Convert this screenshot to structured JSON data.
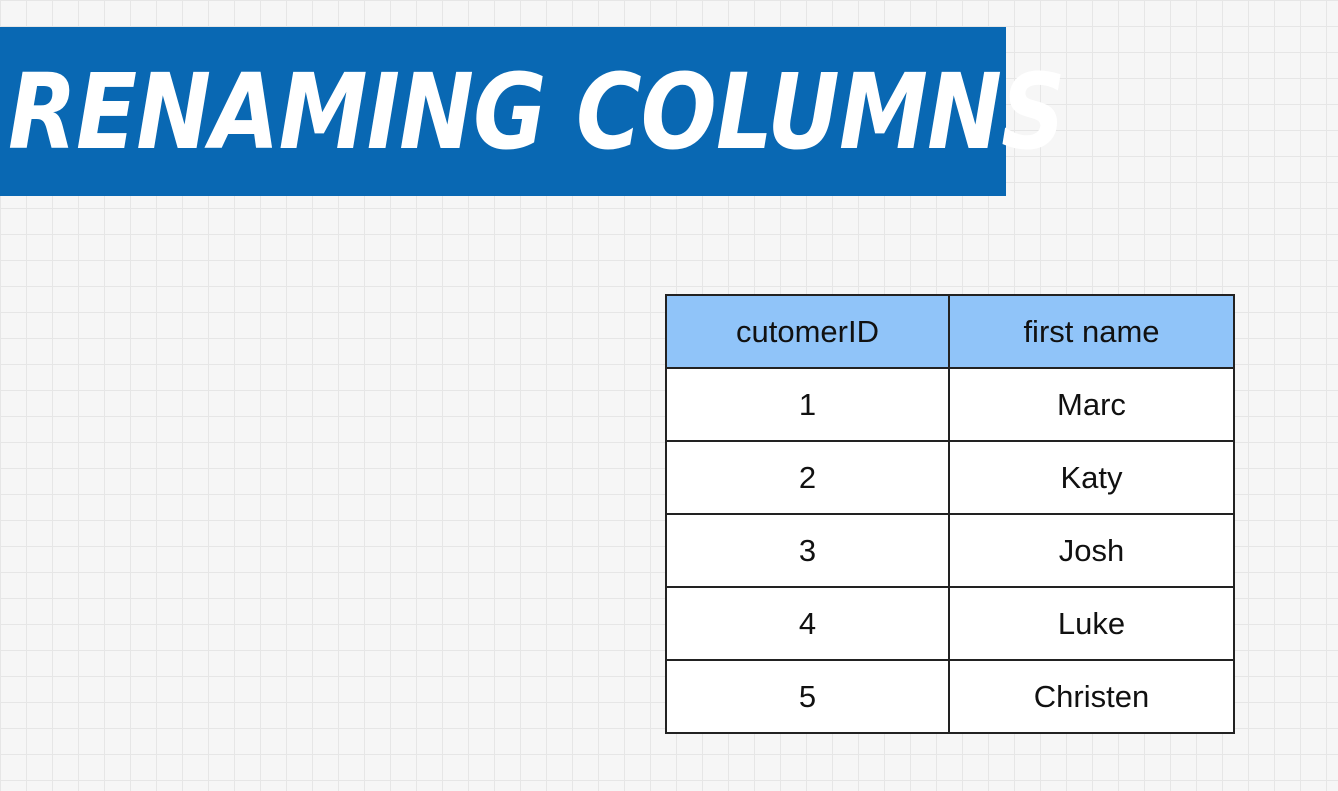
{
  "title": "Renaming Columns",
  "colors": {
    "banner": "#0968b3",
    "header_bg": "#90c4f9",
    "background": "#f6f6f6"
  },
  "table": {
    "headers": [
      "cutomerID",
      "first name"
    ],
    "rows": [
      [
        "1",
        "Marc"
      ],
      [
        "2",
        "Katy"
      ],
      [
        "3",
        "Josh"
      ],
      [
        "4",
        "Luke"
      ],
      [
        "5",
        "Christen"
      ]
    ]
  }
}
